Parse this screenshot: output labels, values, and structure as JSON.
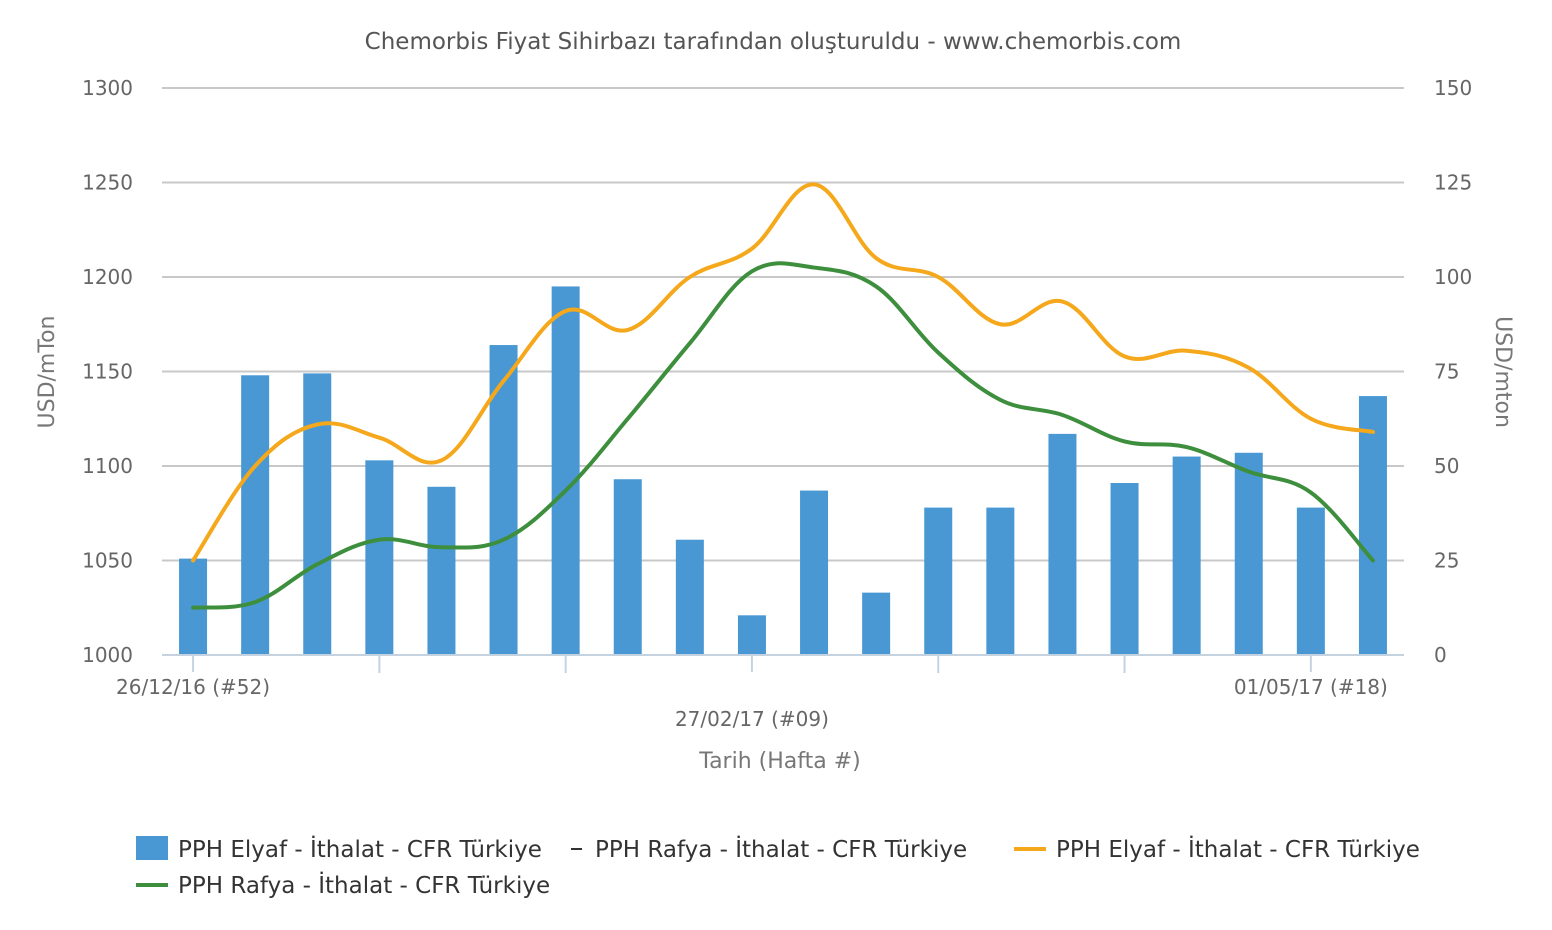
{
  "chart_data": {
    "type": "bar",
    "title": "Chemorbis Fiyat Sihirbazı tarafından oluşturuldu - www.chemorbis.com",
    "xlabel": "Tarih (Hafta #)",
    "ylabel_left": "USD/mTon",
    "ylabel_right": "USD/mton",
    "ylim_left": [
      1000,
      1300
    ],
    "ylim_right": [
      0,
      150
    ],
    "yticks_left": [
      "1000",
      "1050",
      "1100",
      "1150",
      "1200",
      "1250",
      "1300"
    ],
    "yticks_right": [
      "0",
      "25",
      "50",
      "75",
      "100",
      "125",
      "150"
    ],
    "x_tick_labels": [
      "26/12/16 (#52)",
      "27/02/17 (#09)",
      "01/05/17 (#18)"
    ],
    "grid": true,
    "legend_position": "bottom",
    "colors": {
      "bar": "#4a98d3",
      "orange": "#f5a81b",
      "green": "#3d8f3d",
      "grid": "#c8c8c8",
      "axis": "#c5d3e0"
    },
    "series": [
      {
        "name": "PPH Elyaf - İthalat - CFR Türkiye",
        "kind": "bar",
        "axis": "right",
        "values": [
          25.5,
          74,
          74.5,
          51.5,
          44.5,
          82,
          97.5,
          46.5,
          30.5,
          10.5,
          43.5,
          16.5,
          39,
          39,
          58.5,
          45.5,
          52.5,
          53.5,
          39,
          68.5
        ]
      },
      {
        "name": "PPH Rafya - İthalat - CFR Türkiye",
        "kind": "line-invisible",
        "axis": "right",
        "values": []
      },
      {
        "name": "PPH Elyaf - İthalat - CFR Türkiye",
        "kind": "line",
        "axis": "left",
        "values": [
          1050,
          1100,
          1122,
          1115,
          1103,
          1145,
          1182,
          1172,
          1200,
          1215,
          1249,
          1210,
          1200,
          1175,
          1187,
          1158,
          1161,
          1152,
          1125,
          1118
        ]
      },
      {
        "name": "PPH Rafya - İthalat - CFR Türkiye",
        "kind": "line",
        "axis": "left",
        "values": [
          1025,
          1028,
          1048,
          1061,
          1057,
          1061,
          1087,
          1125,
          1165,
          1203,
          1205,
          1195,
          1160,
          1135,
          1127,
          1113,
          1110,
          1097,
          1086,
          1050
        ]
      }
    ]
  }
}
